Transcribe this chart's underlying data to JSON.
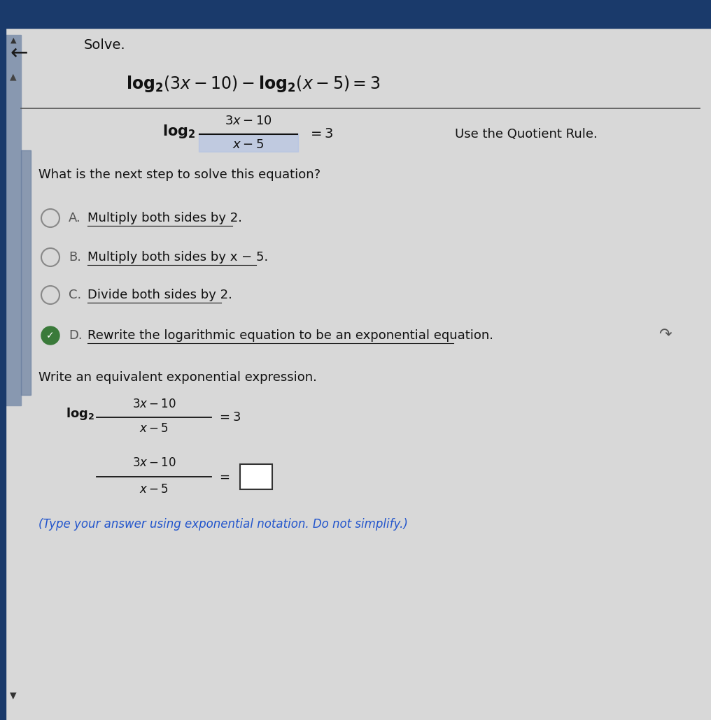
{
  "bg_color": "#d8d8d8",
  "header_color": "#1a3a6b",
  "title": "Solve.",
  "question": "What is the next step to solve this equation?",
  "options": [
    {
      "letter": "A.",
      "text": "Multiply both sides by 2."
    },
    {
      "letter": "B.",
      "text": "Multiply both sides by x − 5."
    },
    {
      "letter": "C.",
      "text": "Divide both sides by 2."
    },
    {
      "letter": "D.",
      "text": "Rewrite the logarithmic equation to be an exponential equation."
    }
  ],
  "selected_option": 3,
  "write_label": "Write an equivalent exponential expression.",
  "type_note": "(Type your answer using exponential notation. Do not simplify.)",
  "quotient_rule_label": "Use the Quotient Rule.",
  "checkbox_color": "#3a7a3a",
  "text_color": "#1a1a1a",
  "blue_note_color": "#2255cc"
}
